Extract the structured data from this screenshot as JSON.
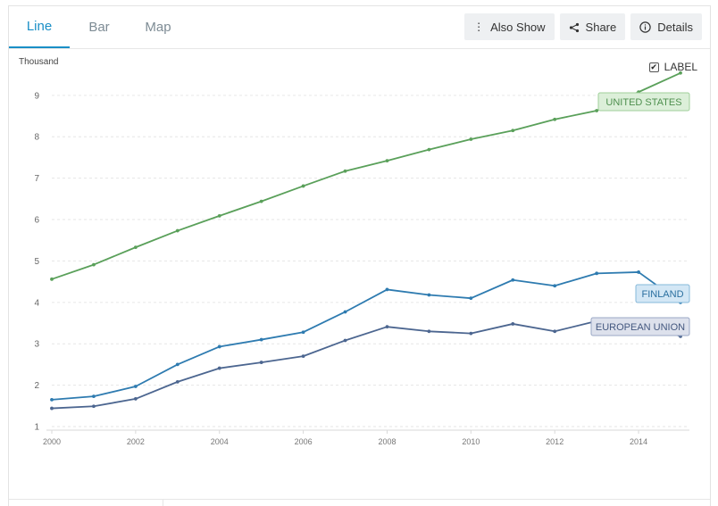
{
  "tabs": [
    {
      "label": "Line",
      "active": true
    },
    {
      "label": "Bar",
      "active": false
    },
    {
      "label": "Map",
      "active": false
    }
  ],
  "toolbar": {
    "also_show": "Also Show",
    "share": "Share",
    "details": "Details",
    "also_show_icon": "kebab-icon",
    "share_icon": "share-icon",
    "details_icon": "info-icon"
  },
  "label_toggle": {
    "label": "LABEL",
    "checked": true
  },
  "chart_data": {
    "type": "line",
    "unit_label": "Thousand",
    "x": [
      2000,
      2001,
      2002,
      2003,
      2004,
      2005,
      2006,
      2007,
      2008,
      2009,
      2010,
      2011,
      2012,
      2013,
      2014,
      2015
    ],
    "xticks": [
      2000,
      2002,
      2004,
      2006,
      2008,
      2010,
      2012,
      2014
    ],
    "yticks": [
      1,
      2,
      3,
      4,
      5,
      6,
      7,
      8,
      9
    ],
    "xlim": [
      2000,
      2015
    ],
    "ylim": [
      1,
      9.6
    ],
    "grid": true,
    "series": [
      {
        "name": "UNITED STATES",
        "color": "#5aa05a",
        "label_bg": "#dcefd9",
        "label_border": "#9fcf9a",
        "label_color": "#4e8f4e",
        "values": [
          4.56,
          4.91,
          5.33,
          5.73,
          6.09,
          6.44,
          6.81,
          7.17,
          7.42,
          7.69,
          7.94,
          8.15,
          8.42,
          8.63,
          9.08,
          9.54
        ]
      },
      {
        "name": "FINLAND",
        "color": "#2e7bb0",
        "label_bg": "#d3e7f5",
        "label_border": "#86b8da",
        "label_color": "#2a6f9f",
        "values": [
          1.65,
          1.73,
          1.97,
          2.5,
          2.93,
          3.1,
          3.28,
          3.77,
          4.31,
          4.18,
          4.1,
          4.54,
          4.4,
          4.7,
          4.73,
          4.0
        ]
      },
      {
        "name": "EUROPEAN UNION",
        "color": "#4c6690",
        "label_bg": "#dde1ec",
        "label_border": "#9aa8c6",
        "label_color": "#44587f",
        "values": [
          1.44,
          1.49,
          1.67,
          2.08,
          2.41,
          2.55,
          2.7,
          3.08,
          3.41,
          3.3,
          3.25,
          3.48,
          3.3,
          3.55,
          3.55,
          3.18
        ]
      }
    ]
  }
}
